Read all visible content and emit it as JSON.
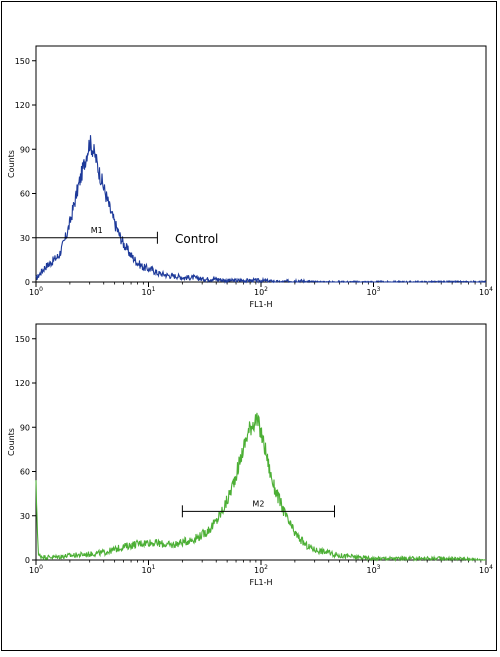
{
  "chart_data": [
    {
      "type": "line",
      "scale_x": "log",
      "xlim": [
        1,
        10000
      ],
      "ylim": [
        0,
        160
      ],
      "xlabel": "FL1-H",
      "ylabel": "Counts",
      "xticks": [
        {
          "value": 1,
          "base": "10",
          "exp": "0"
        },
        {
          "value": 10,
          "base": "10",
          "exp": "1"
        },
        {
          "value": 100,
          "base": "10",
          "exp": "2"
        },
        {
          "value": 1000,
          "base": "10",
          "exp": "3"
        },
        {
          "value": 10000,
          "base": "10",
          "exp": "4"
        }
      ],
      "yticks": [
        0,
        30,
        60,
        90,
        120,
        150
      ],
      "grid": false,
      "color": "#1e3a9a",
      "series": [
        {
          "x": [
            1.0,
            1.2,
            1.4,
            1.6,
            1.8,
            2.0,
            2.2,
            2.4,
            2.6,
            2.8,
            3.0,
            3.2,
            3.4,
            3.6,
            3.8,
            4.0,
            4.3,
            4.6,
            5.0,
            5.5,
            6.0,
            7.0,
            8.0,
            9.0,
            10,
            11,
            12,
            14,
            16,
            18,
            20,
            25,
            30,
            35,
            40,
            50,
            60,
            80,
            100,
            150,
            200,
            300,
            500,
            1000,
            10000
          ],
          "y": [
            2,
            10,
            14,
            18,
            28,
            40,
            54,
            66,
            76,
            86,
            95,
            90,
            84,
            76,
            70,
            64,
            56,
            48,
            40,
            32,
            26,
            18,
            13,
            10,
            9,
            8,
            6,
            5,
            4,
            4,
            3,
            3,
            2,
            2,
            2,
            1,
            1,
            1,
            1,
            0,
            1,
            0,
            0,
            0,
            0
          ]
        }
      ],
      "markers": [
        {
          "label": "M1",
          "x_start": 1,
          "x_end": 12,
          "y": 30
        }
      ],
      "annotations": [
        "Control"
      ]
    },
    {
      "type": "line",
      "scale_x": "log",
      "xlim": [
        1,
        10000
      ],
      "ylim": [
        0,
        160
      ],
      "xlabel": "FL1-H",
      "ylabel": "Counts",
      "xticks": [
        {
          "value": 1,
          "base": "10",
          "exp": "0"
        },
        {
          "value": 10,
          "base": "10",
          "exp": "1"
        },
        {
          "value": 100,
          "base": "10",
          "exp": "2"
        },
        {
          "value": 1000,
          "base": "10",
          "exp": "3"
        },
        {
          "value": 10000,
          "base": "10",
          "exp": "4"
        }
      ],
      "yticks": [
        0,
        30,
        60,
        90,
        120,
        150
      ],
      "grid": false,
      "color": "#4caf35",
      "series": [
        {
          "x": [
            1.0,
            1.05,
            1.2,
            1.5,
            2,
            3,
            4,
            5,
            6,
            7,
            8,
            10,
            13,
            16,
            20,
            25,
            30,
            35,
            40,
            45,
            50,
            55,
            60,
            65,
            70,
            75,
            80,
            85,
            90,
            95,
            100,
            110,
            120,
            130,
            150,
            170,
            200,
            250,
            300,
            400,
            500,
            700,
            1000,
            2000,
            5000,
            10000
          ],
          "y": [
            50,
            3,
            2,
            2,
            3,
            4,
            5,
            7,
            9,
            10,
            11,
            12,
            11,
            10,
            12,
            14,
            17,
            21,
            26,
            33,
            40,
            49,
            58,
            67,
            76,
            84,
            90,
            93,
            95,
            92,
            86,
            74,
            60,
            50,
            38,
            28,
            18,
            10,
            7,
            5,
            3,
            2,
            1,
            1,
            1,
            0
          ]
        }
      ],
      "markers": [
        {
          "label": "M2",
          "x_start": 20,
          "x_end": 450,
          "y": 33
        }
      ]
    }
  ]
}
